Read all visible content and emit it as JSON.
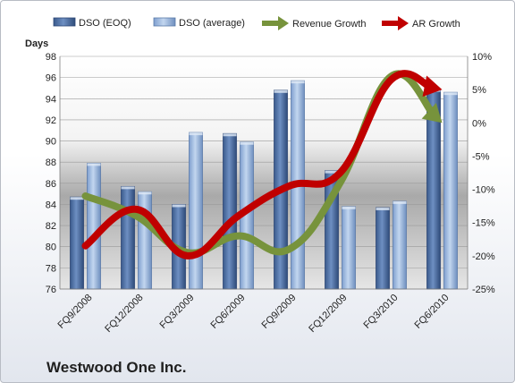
{
  "chart_data": {
    "type": "bar",
    "title": "Westwood One Inc.",
    "categories": [
      "FQ9/2008",
      "FQ12/2008",
      "FQ3/2009",
      "FQ6/2009",
      "FQ9/2009",
      "FQ12/2009",
      "FQ3/2010",
      "FQ6/2010"
    ],
    "ylabel_left": "Days",
    "ylim_left": [
      76,
      98
    ],
    "yticks_left": [
      "76",
      "78",
      "80",
      "82",
      "84",
      "86",
      "88",
      "90",
      "92",
      "94",
      "96",
      "98"
    ],
    "ylim_right": [
      -0.25,
      0.1
    ],
    "yticks_right": [
      "-25%",
      "-20%",
      "-15%",
      "-10%",
      "-5%",
      "0%",
      "5%",
      "10%"
    ],
    "series": [
      {
        "name": "DSO (EOQ)",
        "axis": "left",
        "kind": "bar",
        "values": [
          84.7,
          85.7,
          84.0,
          90.7,
          94.8,
          87.2,
          83.7,
          94.9
        ]
      },
      {
        "name": "DSO (average)",
        "axis": "left",
        "kind": "bar",
        "values": [
          87.9,
          85.2,
          90.8,
          89.9,
          95.7,
          83.8,
          84.3,
          94.6
        ]
      },
      {
        "name": "Revenue Growth",
        "axis": "right",
        "kind": "line",
        "values": [
          -0.11,
          -0.14,
          -0.195,
          -0.17,
          -0.19,
          -0.09,
          0.07,
          0.0
        ]
      },
      {
        "name": "AR Growth",
        "axis": "right",
        "kind": "line",
        "values": [
          -0.185,
          -0.13,
          -0.2,
          -0.14,
          -0.095,
          -0.075,
          0.065,
          0.05
        ]
      }
    ],
    "grid": true,
    "legend": "top",
    "colors": {
      "dso_eoq": "#4f6fa3",
      "dso_avg": "#95b3d7",
      "revenue_growth": "#77933c",
      "ar_growth": "#c00000",
      "plot_band": "#a6a6a6"
    }
  }
}
